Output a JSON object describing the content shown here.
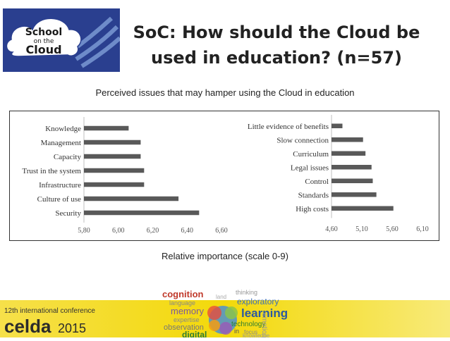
{
  "header": {
    "logo_text": [
      "School",
      "on the",
      "Cloud"
    ],
    "title_line1": "SoC: How should the Cloud be",
    "title_line2": "used in education? (n=57)"
  },
  "subtitle": "Perceived issues that may hamper using the Cloud in education",
  "caption": "Relative importance (scale 0-9)",
  "banner": {
    "conference": "12th international conference",
    "event": "celda",
    "year": "2015",
    "words": [
      "cognition",
      "language",
      "memory",
      "expertise",
      "observation",
      "digital",
      "thinking",
      "exploratory",
      "learning",
      "technology",
      "in",
      "focus",
      "knowledge",
      "emotion",
      "land"
    ]
  },
  "colors": {
    "bar": "#595959",
    "axis": "#bfbfbf",
    "banner_yellow": "#f3d90a",
    "logo_blue": "#2a3f8f"
  },
  "chart_data": [
    {
      "type": "bar",
      "orientation": "horizontal",
      "categories": [
        "Knowledge",
        "Management",
        "Capacity",
        "Trust in the system",
        "Infrastructure",
        "Culture of use",
        "Security"
      ],
      "values": [
        6.06,
        6.13,
        6.13,
        6.15,
        6.15,
        6.35,
        6.47
      ],
      "xlim": [
        5.8,
        6.6
      ],
      "xticks": [
        "5,80",
        "6,00",
        "6,20",
        "6,40",
        "6,60"
      ]
    },
    {
      "type": "bar",
      "orientation": "horizontal",
      "categories": [
        "Little evidence of benefits",
        "Slow connection",
        "Curriculum",
        "Legal issues",
        "Control",
        "Standards",
        "High costs"
      ],
      "values": [
        4.78,
        5.12,
        5.16,
        5.26,
        5.28,
        5.34,
        5.62
      ],
      "xlim": [
        4.6,
        6.1
      ],
      "xticks": [
        "4,60",
        "5,10",
        "5,60",
        "6,10"
      ]
    }
  ]
}
